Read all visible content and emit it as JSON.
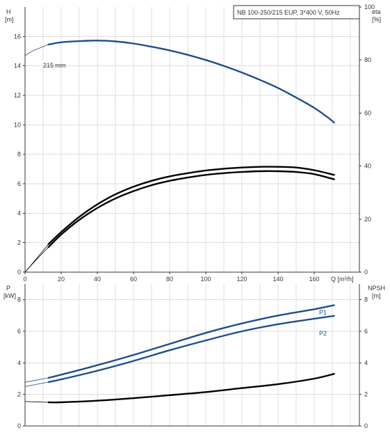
{
  "chart_data": [
    {
      "type": "line",
      "header": "NB 100-250/215 EUP, 3*400 V, 50Hz",
      "xlabel": "Q [m³/h]",
      "xlim": [
        0,
        185
      ],
      "x_ticks": [
        "0",
        "20",
        "40",
        "60",
        "80",
        "100",
        "120",
        "140",
        "160"
      ],
      "y_left": {
        "label_line1": "H",
        "label_line2": "[m]",
        "lim": [
          0,
          18
        ],
        "ticks": [
          "0",
          "2",
          "4",
          "6",
          "8",
          "10",
          "12",
          "14",
          "16"
        ]
      },
      "y_right": {
        "label_line1": "eta",
        "label_line2": "[%]",
        "lim": [
          0,
          100
        ],
        "ticks": [
          "0",
          "20",
          "40",
          "60",
          "80",
          "100"
        ]
      },
      "annotation": "215 mm",
      "grid": true,
      "series": [
        {
          "name": "215 mm",
          "axis": "left",
          "color": "#1f4e8c",
          "points": [
            [
              0,
              14.7
            ],
            [
              4,
              15.0
            ],
            [
              10,
              15.3
            ],
            [
              13,
              15.45
            ],
            [
              20,
              15.6
            ],
            [
              30,
              15.68
            ],
            [
              40,
              15.72
            ],
            [
              50,
              15.66
            ],
            [
              60,
              15.52
            ],
            [
              70,
              15.3
            ],
            [
              80,
              15.05
            ],
            [
              90,
              14.75
            ],
            [
              100,
              14.4
            ],
            [
              110,
              14.0
            ],
            [
              120,
              13.55
            ],
            [
              130,
              13.05
            ],
            [
              140,
              12.5
            ],
            [
              150,
              11.85
            ],
            [
              160,
              11.15
            ],
            [
              167,
              10.55
            ],
            [
              171,
              10.15
            ]
          ],
          "extrapolated_to_x": 13
        },
        {
          "axis": "left",
          "color": "#000000",
          "points": [
            [
              0,
              0
            ],
            [
              5,
              0.72
            ],
            [
              13,
              1.9
            ],
            [
              20,
              2.72
            ],
            [
              30,
              3.75
            ],
            [
              40,
              4.6
            ],
            [
              50,
              5.28
            ],
            [
              60,
              5.8
            ],
            [
              70,
              6.2
            ],
            [
              80,
              6.5
            ],
            [
              90,
              6.72
            ],
            [
              100,
              6.9
            ],
            [
              110,
              7.02
            ],
            [
              120,
              7.1
            ],
            [
              130,
              7.15
            ],
            [
              140,
              7.15
            ],
            [
              150,
              7.1
            ],
            [
              160,
              6.92
            ],
            [
              171,
              6.6
            ]
          ],
          "extrapolated_to_x": 13
        },
        {
          "axis": "left",
          "color": "#000000",
          "points": [
            [
              0,
              0
            ],
            [
              5,
              0.68
            ],
            [
              13,
              1.7
            ],
            [
              20,
              2.55
            ],
            [
              30,
              3.55
            ],
            [
              40,
              4.35
            ],
            [
              50,
              5.0
            ],
            [
              60,
              5.5
            ],
            [
              70,
              5.9
            ],
            [
              80,
              6.2
            ],
            [
              90,
              6.42
            ],
            [
              100,
              6.6
            ],
            [
              110,
              6.72
            ],
            [
              120,
              6.8
            ],
            [
              130,
              6.85
            ],
            [
              140,
              6.85
            ],
            [
              150,
              6.8
            ],
            [
              160,
              6.65
            ],
            [
              171,
              6.3
            ]
          ],
          "extrapolated_to_x": 13
        }
      ]
    },
    {
      "type": "line",
      "xlim": [
        0,
        185
      ],
      "y_left": {
        "label_line1": "P",
        "label_line2": "[kW]",
        "lim": [
          0,
          9
        ],
        "ticks": [
          "0",
          "2",
          "4",
          "6",
          "8"
        ]
      },
      "y_right": {
        "label_line1": "NPSH",
        "label_line2": "[m]",
        "lim": [
          0,
          9
        ],
        "ticks": [
          "0",
          "2",
          "4",
          "6",
          "8"
        ]
      },
      "grid": true,
      "series": [
        {
          "name": "P1",
          "axis": "left",
          "color": "#1f4e8c",
          "points": [
            [
              0,
              2.77
            ],
            [
              13,
              3.05
            ],
            [
              20,
              3.25
            ],
            [
              40,
              3.85
            ],
            [
              60,
              4.5
            ],
            [
              80,
              5.2
            ],
            [
              100,
              5.9
            ],
            [
              120,
              6.5
            ],
            [
              140,
              7.0
            ],
            [
              160,
              7.4
            ],
            [
              171,
              7.65
            ]
          ],
          "extrapolated_to_x": 13
        },
        {
          "name": "P2",
          "axis": "left",
          "color": "#1f4e8c",
          "points": [
            [
              0,
              2.5
            ],
            [
              13,
              2.78
            ],
            [
              20,
              2.95
            ],
            [
              40,
              3.5
            ],
            [
              60,
              4.12
            ],
            [
              80,
              4.8
            ],
            [
              100,
              5.42
            ],
            [
              120,
              6.0
            ],
            [
              140,
              6.45
            ],
            [
              160,
              6.8
            ],
            [
              171,
              6.98
            ]
          ],
          "extrapolated_to_x": 13
        },
        {
          "axis": "right",
          "color": "#000000",
          "points": [
            [
              0,
              1.55
            ],
            [
              13,
              1.5
            ],
            [
              20,
              1.5
            ],
            [
              40,
              1.6
            ],
            [
              60,
              1.76
            ],
            [
              80,
              1.95
            ],
            [
              100,
              2.15
            ],
            [
              120,
              2.4
            ],
            [
              140,
              2.65
            ],
            [
              160,
              3.0
            ],
            [
              171,
              3.3
            ]
          ],
          "extrapolated_to_x": 13
        }
      ]
    }
  ]
}
